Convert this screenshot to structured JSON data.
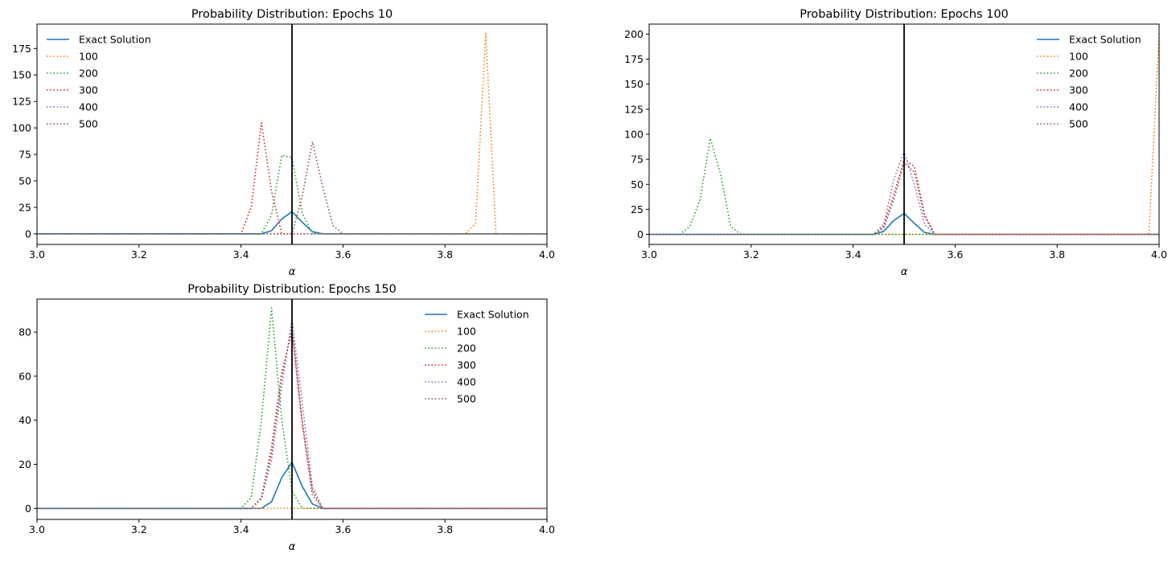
{
  "chart_data": [
    {
      "type": "line",
      "title": "Probability Distribution: Epochs 10",
      "xlabel": "α",
      "ylabel": "",
      "xlim": [
        3.0,
        4.0
      ],
      "ylim": [
        -10,
        198
      ],
      "xticks": [
        3.0,
        3.2,
        3.4,
        3.6,
        3.8,
        4.0
      ],
      "xtick_labels": [
        "3.0",
        "3.2",
        "3.4",
        "3.6",
        "3.8",
        "4.0"
      ],
      "yticks": [
        0,
        25,
        50,
        75,
        100,
        125,
        150,
        175
      ],
      "ytick_labels": [
        "0",
        "25",
        "50",
        "75",
        "100",
        "125",
        "150",
        "175"
      ],
      "grid": false,
      "legend_position": "upper-left",
      "vline": 3.5,
      "series": [
        {
          "name": "Exact Solution",
          "color": "#1f77b4",
          "style": "solid",
          "x": [
            3.0,
            3.44,
            3.46,
            3.48,
            3.5,
            3.52,
            3.54,
            3.56,
            4.0
          ],
          "y": [
            0,
            0,
            3,
            14,
            21,
            11,
            2,
            0,
            0
          ]
        },
        {
          "name": "100",
          "color": "#ff7f0e",
          "style": "dotted",
          "x": [
            3.0,
            3.84,
            3.86,
            3.88,
            3.9,
            4.0
          ],
          "y": [
            0,
            0,
            10,
            189,
            0,
            0
          ]
        },
        {
          "name": "200",
          "color": "#2ca02c",
          "style": "dotted",
          "x": [
            3.0,
            3.44,
            3.46,
            3.48,
            3.5,
            3.52,
            3.54,
            4.0
          ],
          "y": [
            0,
            0,
            18,
            74,
            72,
            20,
            0,
            0
          ]
        },
        {
          "name": "300",
          "color": "#d62728",
          "style": "dotted",
          "x": [
            3.0,
            3.4,
            3.42,
            3.44,
            3.46,
            3.48,
            4.0
          ],
          "y": [
            0,
            0,
            25,
            105,
            40,
            0,
            0
          ]
        },
        {
          "name": "400",
          "color": "#9467bd",
          "style": "dotted",
          "x": [
            3.0,
            4.0
          ],
          "y": [
            0,
            0
          ]
        },
        {
          "name": "500",
          "color": "#8c564b",
          "style": "dotted",
          "x": [
            3.0,
            3.5,
            3.52,
            3.54,
            3.56,
            3.58,
            3.6,
            4.0
          ],
          "y": [
            0,
            0,
            35,
            87,
            45,
            8,
            0,
            0
          ]
        }
      ]
    },
    {
      "type": "line",
      "title": "Probability Distribution: Epochs 100",
      "xlabel": "α",
      "ylabel": "",
      "xlim": [
        3.0,
        4.0
      ],
      "ylim": [
        -10,
        210
      ],
      "xticks": [
        3.0,
        3.2,
        3.4,
        3.6,
        3.8,
        4.0
      ],
      "xtick_labels": [
        "3.0",
        "3.2",
        "3.4",
        "3.6",
        "3.8",
        "4.0"
      ],
      "yticks": [
        0,
        25,
        50,
        75,
        100,
        125,
        150,
        175,
        200
      ],
      "ytick_labels": [
        "0",
        "25",
        "50",
        "75",
        "100",
        "125",
        "150",
        "175",
        "200"
      ],
      "grid": false,
      "legend_position": "upper-right",
      "vline": 3.5,
      "series": [
        {
          "name": "Exact Solution",
          "color": "#1f77b4",
          "style": "solid",
          "x": [
            3.0,
            3.44,
            3.46,
            3.48,
            3.5,
            3.52,
            3.54,
            3.56,
            4.0
          ],
          "y": [
            0,
            0,
            3,
            14,
            21,
            11,
            2,
            0,
            0
          ]
        },
        {
          "name": "100",
          "color": "#ff7f0e",
          "style": "dotted",
          "x": [
            3.0,
            3.98,
            4.0
          ],
          "y": [
            0,
            0,
            200
          ]
        },
        {
          "name": "200",
          "color": "#2ca02c",
          "style": "dotted",
          "x": [
            3.0,
            3.06,
            3.08,
            3.1,
            3.12,
            3.14,
            3.16,
            3.18,
            4.0
          ],
          "y": [
            0,
            0,
            8,
            35,
            96,
            60,
            8,
            0,
            0
          ]
        },
        {
          "name": "300",
          "color": "#d62728",
          "style": "dotted",
          "x": [
            3.0,
            3.44,
            3.46,
            3.48,
            3.5,
            3.52,
            3.54,
            3.56,
            4.0
          ],
          "y": [
            0,
            0,
            8,
            40,
            75,
            68,
            20,
            0,
            0
          ]
        },
        {
          "name": "400",
          "color": "#9467bd",
          "style": "dotted",
          "x": [
            3.0,
            3.44,
            3.46,
            3.48,
            3.5,
            3.52,
            3.54,
            3.56,
            4.0
          ],
          "y": [
            0,
            0,
            10,
            55,
            83,
            50,
            10,
            0,
            0
          ]
        },
        {
          "name": "500",
          "color": "#8c564b",
          "style": "dotted",
          "x": [
            3.0,
            3.44,
            3.46,
            3.48,
            3.5,
            3.52,
            3.54,
            3.56,
            4.0
          ],
          "y": [
            0,
            0,
            6,
            35,
            72,
            62,
            18,
            0,
            0
          ]
        }
      ]
    },
    {
      "type": "line",
      "title": "Probability Distribution: Epochs 150",
      "xlabel": "α",
      "ylabel": "",
      "xlim": [
        3.0,
        4.0
      ],
      "ylim": [
        -5,
        95
      ],
      "xticks": [
        3.0,
        3.2,
        3.4,
        3.6,
        3.8,
        4.0
      ],
      "xtick_labels": [
        "3.0",
        "3.2",
        "3.4",
        "3.6",
        "3.8",
        "4.0"
      ],
      "yticks": [
        0,
        20,
        40,
        60,
        80
      ],
      "ytick_labels": [
        "0",
        "20",
        "40",
        "60",
        "80"
      ],
      "grid": false,
      "legend_position": "upper-right",
      "vline": 3.5,
      "series": [
        {
          "name": "Exact Solution",
          "color": "#1f77b4",
          "style": "solid",
          "x": [
            3.0,
            3.44,
            3.46,
            3.48,
            3.5,
            3.52,
            3.54,
            3.56,
            4.0
          ],
          "y": [
            0,
            0,
            3,
            14,
            21,
            10,
            2,
            0,
            0
          ]
        },
        {
          "name": "100",
          "color": "#ff7f0e",
          "style": "dotted",
          "x": [
            3.0,
            4.0
          ],
          "y": [
            0,
            0
          ]
        },
        {
          "name": "200",
          "color": "#2ca02c",
          "style": "dotted",
          "x": [
            3.0,
            3.4,
            3.42,
            3.44,
            3.46,
            3.48,
            3.5,
            3.52,
            3.54,
            4.0
          ],
          "y": [
            0,
            0,
            5,
            40,
            91,
            40,
            8,
            0,
            0,
            0
          ]
        },
        {
          "name": "300",
          "color": "#d62728",
          "style": "dotted",
          "x": [
            3.0,
            3.42,
            3.44,
            3.46,
            3.48,
            3.5,
            3.52,
            3.54,
            3.56,
            4.0
          ],
          "y": [
            0,
            0,
            5,
            25,
            60,
            82,
            40,
            8,
            0,
            0
          ]
        },
        {
          "name": "400",
          "color": "#9467bd",
          "style": "dotted",
          "x": [
            3.0,
            3.42,
            3.44,
            3.46,
            3.48,
            3.5,
            3.52,
            3.54,
            3.56,
            4.0
          ],
          "y": [
            0,
            0,
            4,
            22,
            55,
            86,
            48,
            10,
            0,
            0
          ]
        },
        {
          "name": "500",
          "color": "#8c564b",
          "style": "dotted",
          "x": [
            3.0,
            3.42,
            3.44,
            3.46,
            3.48,
            3.5,
            3.52,
            3.54,
            3.56,
            4.0
          ],
          "y": [
            0,
            0,
            5,
            28,
            62,
            80,
            38,
            6,
            0,
            0
          ]
        }
      ]
    }
  ]
}
